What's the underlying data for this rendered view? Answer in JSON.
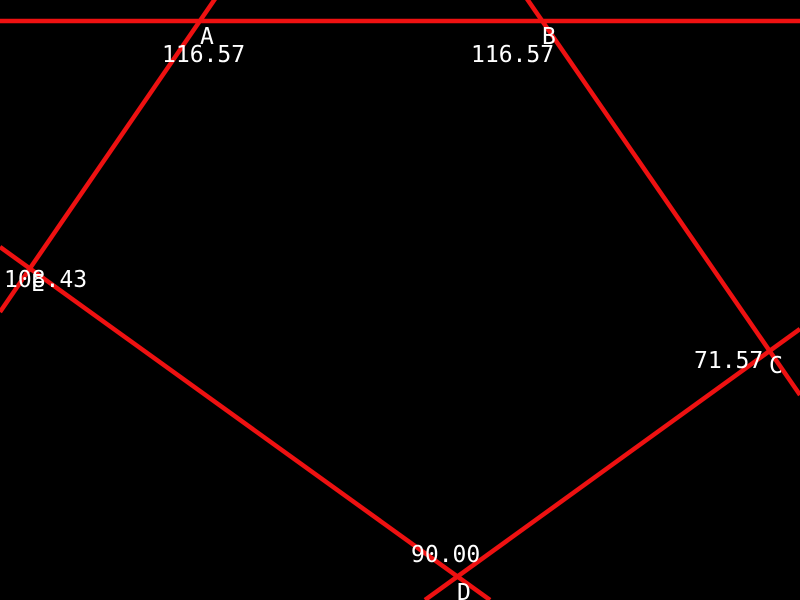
{
  "colors": {
    "background": "#000000",
    "lines": "#ee1111",
    "text": "#ffffff"
  },
  "vertices": {
    "A": {
      "label": "A",
      "angle": "116.57"
    },
    "B": {
      "label": "B",
      "angle": "116.57"
    },
    "C": {
      "label": "C",
      "angle": "71.57"
    },
    "D": {
      "label": "D",
      "angle": "90.00"
    },
    "E": {
      "label": "E",
      "angle": "108.43"
    }
  }
}
